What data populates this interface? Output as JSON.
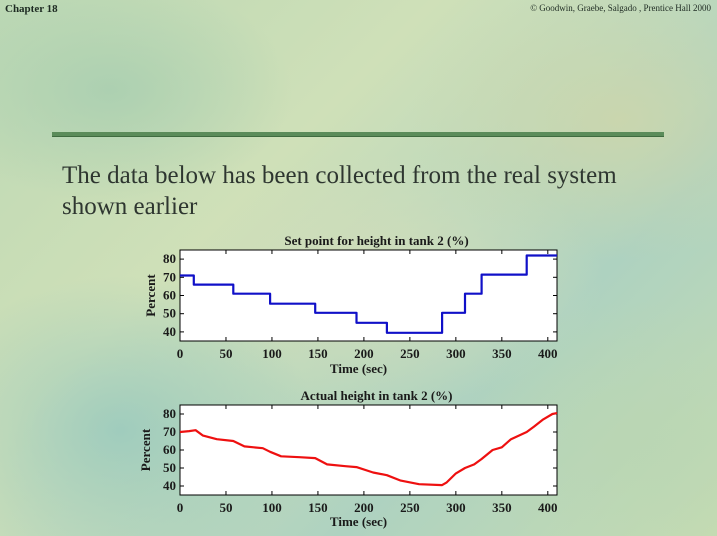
{
  "header": {
    "chapter": "Chapter 18",
    "copyright": "© Goodwin, Graebe, Salgado , Prentice Hall 2000"
  },
  "heading": "The data below has been collected from the real system shown earlier",
  "chart_data": [
    {
      "type": "line",
      "title": "Set point for height in tank 2 (%)",
      "xlabel": "Time (sec)",
      "ylabel": "Percent",
      "xlim": [
        0,
        410
      ],
      "ylim": [
        35,
        85
      ],
      "xticks": [
        0,
        50,
        100,
        150,
        200,
        250,
        300,
        350,
        400
      ],
      "yticks": [
        40,
        50,
        60,
        70,
        80
      ],
      "color": "#1010c8",
      "x": [
        0,
        15,
        15,
        58,
        58,
        98,
        98,
        147,
        147,
        192,
        192,
        225,
        225,
        285,
        285,
        310,
        310,
        328,
        328,
        377,
        377,
        410
      ],
      "y": [
        71,
        71,
        66,
        66,
        61,
        61,
        55.5,
        55.5,
        50.5,
        50.5,
        45,
        45,
        39.5,
        39.5,
        50.5,
        50.5,
        61,
        61,
        71.5,
        71.5,
        82,
        82
      ]
    },
    {
      "type": "line",
      "title": "Actual height in tank 2 (%)",
      "xlabel": "Time (sec)",
      "ylabel": "Percent",
      "xlim": [
        0,
        410
      ],
      "ylim": [
        35,
        85
      ],
      "xticks": [
        0,
        50,
        100,
        150,
        200,
        250,
        300,
        350,
        400
      ],
      "yticks": [
        40,
        50,
        60,
        70,
        80
      ],
      "color": "#ee1010",
      "x": [
        0,
        10,
        17,
        25,
        40,
        58,
        70,
        90,
        98,
        110,
        130,
        147,
        160,
        180,
        192,
        210,
        225,
        240,
        260,
        285,
        290,
        300,
        310,
        320,
        328,
        340,
        350,
        360,
        377,
        385,
        395,
        405,
        410
      ],
      "y": [
        70,
        70.5,
        71,
        68,
        66,
        65,
        62,
        61,
        59,
        56.5,
        56,
        55.5,
        52,
        51,
        50.5,
        47.5,
        46,
        43,
        41,
        40.5,
        42,
        47,
        50,
        52,
        55,
        60,
        61.5,
        66,
        70,
        73,
        77,
        80,
        80.5
      ]
    }
  ]
}
